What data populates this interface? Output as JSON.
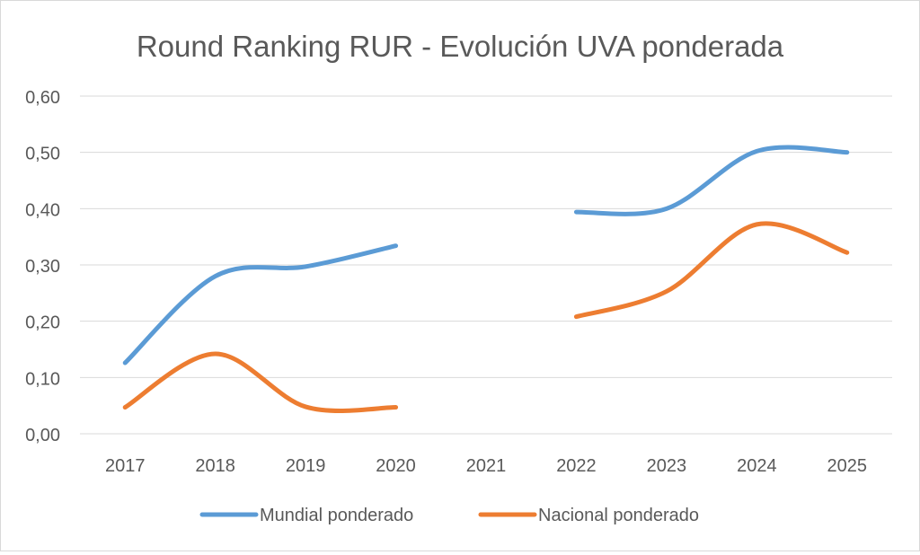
{
  "chart_data": {
    "type": "line",
    "title": "Round Ranking RUR - Evolución UVA ponderada",
    "xlabel": "",
    "ylabel": "",
    "categories": [
      "2017",
      "2018",
      "2019",
      "2020",
      "2021",
      "2022",
      "2023",
      "2024",
      "2025"
    ],
    "ylim": [
      0,
      0.6
    ],
    "yticks": [
      "0,00",
      "0,10",
      "0,20",
      "0,30",
      "0,40",
      "0,50",
      "0,60"
    ],
    "smooth": true,
    "grid": true,
    "legend_position": "bottom",
    "series": [
      {
        "name": "Mundial ponderado",
        "color": "#5b9bd5",
        "values": [
          0.126,
          0.28,
          0.297,
          0.334,
          null,
          0.394,
          0.4,
          0.502,
          0.5
        ]
      },
      {
        "name": "Nacional ponderado",
        "color": "#ed7d31",
        "values": [
          0.047,
          0.142,
          0.048,
          0.047,
          null,
          0.208,
          0.253,
          0.372,
          0.322
        ]
      }
    ]
  }
}
